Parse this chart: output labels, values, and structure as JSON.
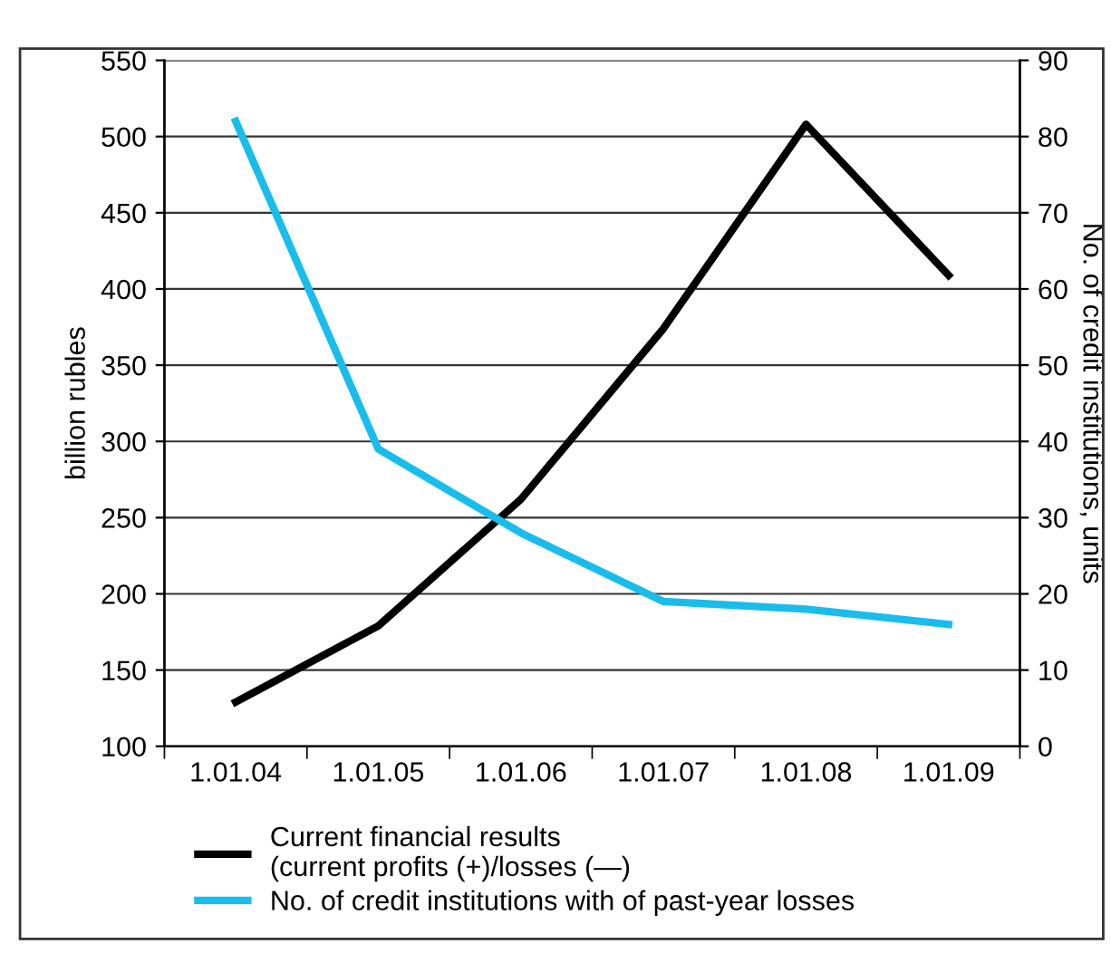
{
  "chart_data": {
    "type": "line",
    "categories": [
      "1.01.04",
      "1.01.05",
      "1.01.06",
      "1.01.07",
      "1.01.08",
      "1.01.09"
    ],
    "ylabel": "billion rubles",
    "y2label": "No. of credit institutions, units",
    "ylim": [
      100,
      550
    ],
    "yticks": [
      100,
      150,
      200,
      250,
      300,
      350,
      400,
      450,
      500,
      550
    ],
    "y2lim": [
      0,
      90
    ],
    "y2ticks": [
      0,
      10,
      20,
      30,
      40,
      50,
      60,
      70,
      80,
      90
    ],
    "grid": "y",
    "legend": "bottom",
    "marker": "none",
    "line_style": "solid",
    "series": [
      {
        "name": "Current financial results\n(current profits (+)/losses (—)",
        "color": "#000000",
        "values": [
          129,
          179,
          262,
          374,
          508,
          409
        ]
      },
      {
        "name": "No. of credit institutions with of past-year losses",
        "color": "#19bdec",
        "axis": "y2",
        "values": [
          82,
          39,
          28,
          19,
          18,
          16
        ]
      }
    ]
  }
}
